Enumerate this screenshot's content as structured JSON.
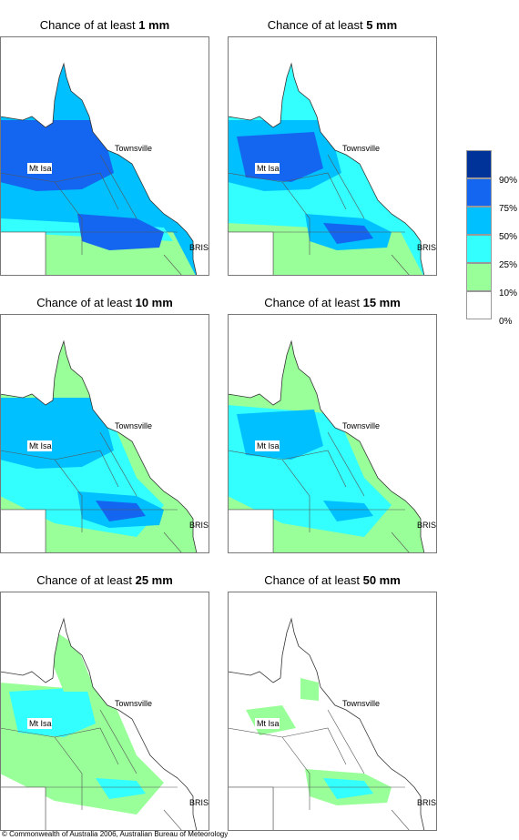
{
  "panels": [
    {
      "title": "Chance of at least",
      "amount": "1 mm"
    },
    {
      "title": "Chance of at least",
      "amount": "5 mm"
    },
    {
      "title": "Chance of at least",
      "amount": "10 mm"
    },
    {
      "title": "Chance of at least",
      "amount": "15 mm"
    },
    {
      "title": "Chance of at least",
      "amount": "25 mm"
    },
    {
      "title": "Chance of at least",
      "amount": "50 mm"
    }
  ],
  "places": {
    "townsville": "Townsville",
    "mt_isa": "Mt Isa",
    "bris": "BRIS"
  },
  "legend": {
    "labels": [
      "90%",
      "75%",
      "50%",
      "25%",
      "10%",
      "0%"
    ]
  },
  "footer": "© Commonwealth of Australia 2006, Australian Bureau of Meteorology"
}
